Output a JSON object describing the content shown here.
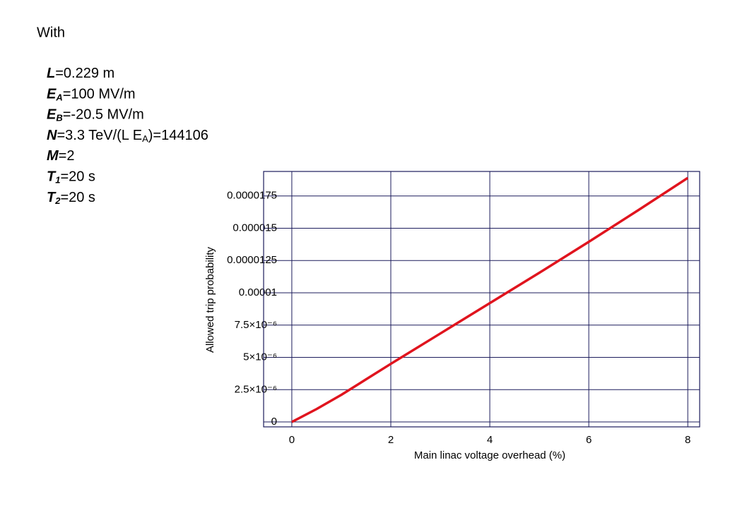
{
  "intro": "With",
  "params": [
    [
      {
        "t": "L",
        "i": true
      },
      {
        "t": "=0.229 m"
      }
    ],
    [
      {
        "t": "E",
        "i": true
      },
      {
        "t": "A",
        "i": true,
        "sub": true
      },
      {
        "t": "=100 MV/m"
      }
    ],
    [
      {
        "t": "E",
        "i": true
      },
      {
        "t": "B",
        "i": true,
        "sub": true
      },
      {
        "t": "=-20.5 MV/m"
      }
    ],
    [
      {
        "t": "N",
        "i": true
      },
      {
        "t": "=3.3 TeV/(L E"
      },
      {
        "t": "A",
        "sub": true
      },
      {
        "t": ")=144106"
      }
    ],
    [
      {
        "t": "M",
        "i": true
      },
      {
        "t": "=2"
      }
    ],
    [
      {
        "t": "T",
        "i": true
      },
      {
        "t": "1",
        "i": true,
        "sub": true
      },
      {
        "t": "=20 s"
      }
    ],
    [
      {
        "t": "T",
        "i": true
      },
      {
        "t": "2",
        "i": true,
        "sub": true
      },
      {
        "t": "=20 s"
      }
    ]
  ],
  "chart_data": {
    "type": "line",
    "x_label": "Main linac voltage overhead (%)",
    "y_label": "Allowed trip probability",
    "x": [
      0,
      0.5,
      1,
      1.5,
      2,
      3,
      4,
      5,
      6,
      7,
      8
    ],
    "series": [
      {
        "name": "Allowed trip probability",
        "color": "#e0141e",
        "values": [
          0,
          1e-06,
          2.1e-06,
          3.3e-06,
          4.5e-06,
          6.85e-06,
          9.2e-06,
          1.155e-05,
          1.395e-05,
          1.64e-05,
          1.89e-05
        ]
      }
    ],
    "xlim": [
      -0.57,
      8.24
    ],
    "xticks": [
      0,
      2,
      4,
      6,
      8
    ],
    "ylim": [
      -3.8e-07,
      1.94e-05
    ],
    "yticks": [
      0,
      {
        "value": 2.5e-06,
        "label": "2.5×10⁻⁶"
      },
      {
        "value": 5e-06,
        "label": "5×10⁻⁶"
      },
      {
        "value": 7.5e-06,
        "label": "7.5×10⁻⁶"
      },
      1e-05,
      1.25e-05,
      1.5e-05,
      1.75e-05
    ],
    "grid": true
  }
}
